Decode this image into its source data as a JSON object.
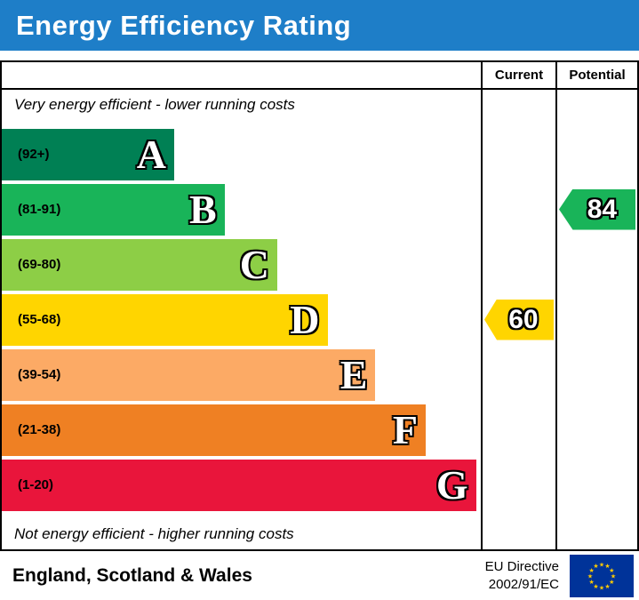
{
  "title": "Energy Efficiency Rating",
  "header": {
    "current": "Current",
    "potential": "Potential"
  },
  "notes": {
    "top": "Very energy efficient - lower running costs",
    "bottom": "Not energy efficient - higher running costs"
  },
  "footer": {
    "region": "England, Scotland & Wales",
    "directive": [
      "EU Directive",
      "2002/91/EC"
    ]
  },
  "colors": {
    "title_bg": "#1e7ec8",
    "eu_flag_blue": "#003399",
    "eu_star_yellow": "#ffcc00"
  },
  "chart_data": {
    "type": "bar",
    "title": "Energy Efficiency Rating",
    "orientation": "horizontal",
    "bands": [
      {
        "letter": "A",
        "range": "(92+)",
        "min": 92,
        "max": 100,
        "color": "#008054",
        "width_pct": 36
      },
      {
        "letter": "B",
        "range": "(81-91)",
        "min": 81,
        "max": 91,
        "color": "#19b459",
        "width_pct": 46.5
      },
      {
        "letter": "C",
        "range": "(69-80)",
        "min": 69,
        "max": 80,
        "color": "#8dce46",
        "width_pct": 57.5
      },
      {
        "letter": "D",
        "range": "(55-68)",
        "min": 55,
        "max": 68,
        "color": "#ffd500",
        "width_pct": 68
      },
      {
        "letter": "E",
        "range": "(39-54)",
        "min": 39,
        "max": 54,
        "color": "#fcaa65",
        "width_pct": 78
      },
      {
        "letter": "F",
        "range": "(21-38)",
        "min": 21,
        "max": 38,
        "color": "#ef8023",
        "width_pct": 88.5
      },
      {
        "letter": "G",
        "range": "(1-20)",
        "min": 1,
        "max": 20,
        "color": "#e9153b",
        "width_pct": 99
      }
    ],
    "current": {
      "value": 60,
      "band": "D",
      "color": "#ffd500"
    },
    "potential": {
      "value": 84,
      "band": "B",
      "color": "#19b459"
    }
  }
}
